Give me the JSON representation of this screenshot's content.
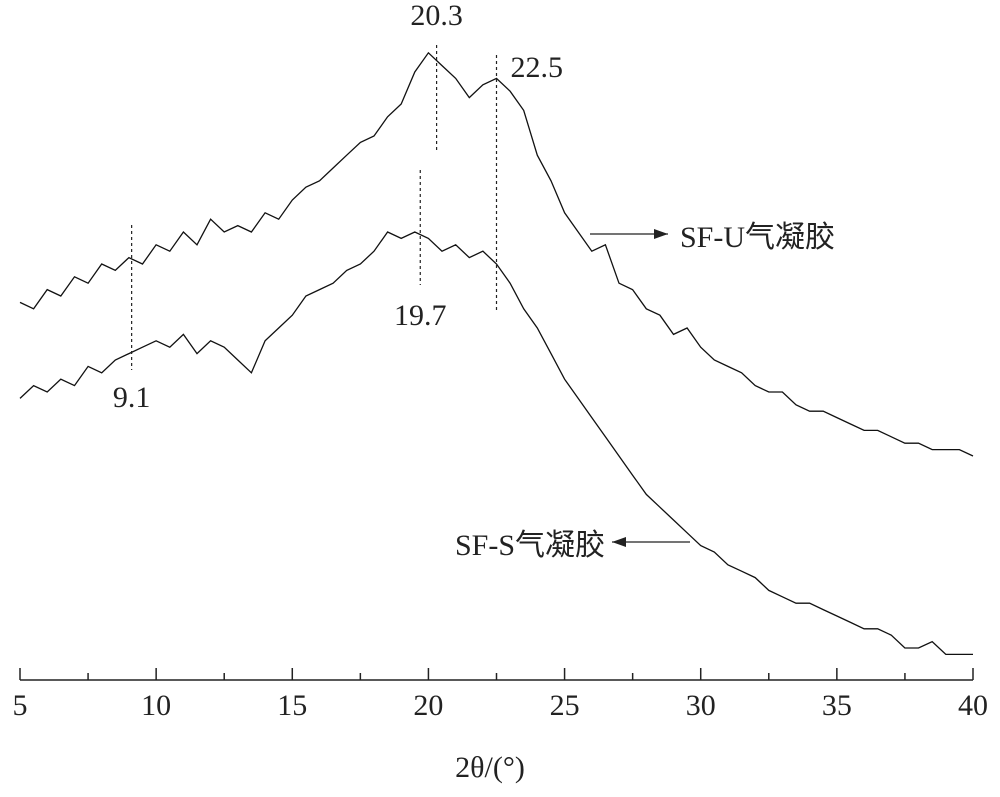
{
  "chart_data": {
    "type": "line",
    "x_label": "2θ/(°)",
    "x": [
      5,
      5.5,
      6,
      6.5,
      7,
      7.5,
      8,
      8.5,
      9,
      9.5,
      10,
      10.5,
      11,
      11.5,
      12,
      12.5,
      13,
      13.5,
      14,
      14.5,
      15,
      15.5,
      16,
      16.5,
      17,
      17.5,
      18,
      18.5,
      19,
      19.5,
      20,
      20.5,
      21,
      21.5,
      22,
      22.5,
      23,
      23.5,
      24,
      24.5,
      25,
      25.5,
      26,
      26.5,
      27,
      27.5,
      28,
      28.5,
      29,
      29.5,
      30,
      30.5,
      31,
      31.5,
      32,
      32.5,
      33,
      33.5,
      34,
      34.5,
      35,
      35.5,
      36,
      36.5,
      37,
      37.5,
      38,
      38.5,
      39,
      39.5,
      40
    ],
    "series": [
      {
        "name": "SF-U气凝胶",
        "color": "#111111",
        "values": [
          59,
          58,
          61,
          60,
          63,
          62,
          65,
          64,
          66,
          65,
          68,
          67,
          70,
          68,
          72,
          70,
          71,
          70,
          73,
          72,
          75,
          77,
          78,
          80,
          82,
          84,
          85,
          88,
          90,
          95,
          98,
          96,
          94,
          91,
          93,
          94,
          92,
          89,
          82,
          78,
          73,
          70,
          67,
          68,
          62,
          61,
          58,
          57,
          54,
          55,
          52,
          50,
          49,
          48,
          46,
          45,
          45,
          43,
          42,
          42,
          41,
          40,
          39,
          39,
          38,
          37,
          37,
          36,
          36,
          36,
          35
        ]
      },
      {
        "name": "SF-S气凝胶",
        "color": "#111111",
        "values": [
          44,
          46,
          45,
          47,
          46,
          49,
          48,
          50,
          51,
          52,
          53,
          52,
          54,
          51,
          53,
          52,
          50,
          48,
          53,
          55,
          57,
          60,
          61,
          62,
          64,
          65,
          67,
          70,
          69,
          70,
          69,
          67,
          68,
          66,
          67,
          65,
          62,
          58,
          55,
          51,
          47,
          44,
          41,
          38,
          35,
          32,
          29,
          27,
          25,
          23,
          21,
          20,
          18,
          17,
          16,
          14,
          13,
          12,
          12,
          11,
          10,
          9,
          8,
          8,
          7,
          5,
          5,
          6,
          4,
          4,
          4
        ]
      }
    ],
    "annotations": [
      {
        "label": "20.3",
        "x": 20.3
      },
      {
        "label": "22.5",
        "x": 22.5
      },
      {
        "label": "19.7",
        "x": 19.7
      },
      {
        "label": "9.1",
        "x": 9.1
      }
    ],
    "xlim": [
      5,
      40
    ],
    "xticks": [
      5,
      10,
      15,
      20,
      25,
      30,
      35,
      40
    ],
    "ylim": [
      0,
      100
    ]
  }
}
